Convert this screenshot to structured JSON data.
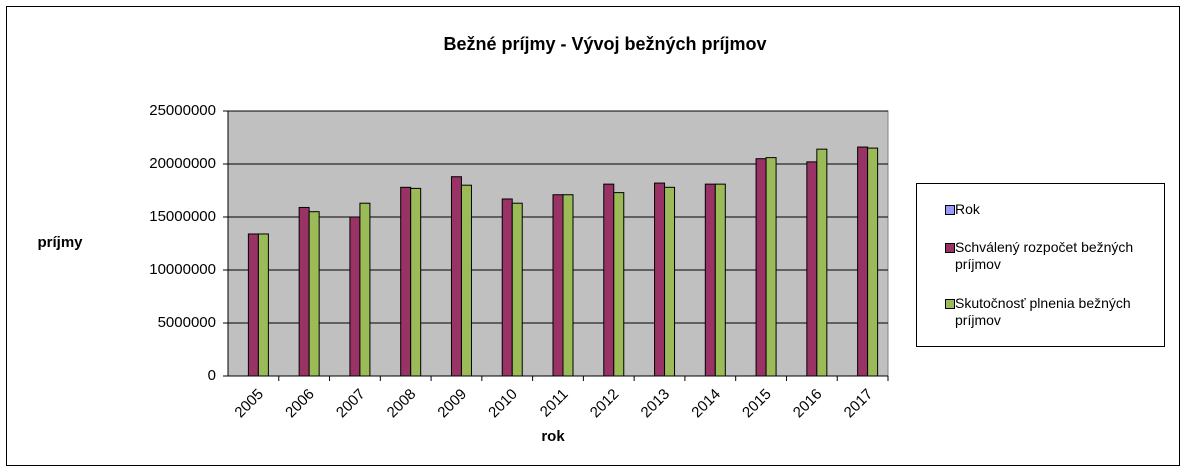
{
  "chart_data": {
    "type": "bar",
    "title": "Bežné príjmy - Vývoj bežných príjmov",
    "x_label": "rok",
    "y_label": "príjmy",
    "categories": [
      "2005",
      "2006",
      "2007",
      "2008",
      "2009",
      "2010",
      "2011",
      "2012",
      "2013",
      "2014",
      "2015",
      "2016",
      "2017"
    ],
    "series": [
      {
        "name": "Rok",
        "color": "#9999ff",
        "values": [
          2005,
          2006,
          2007,
          2008,
          2009,
          2010,
          2011,
          2012,
          2013,
          2014,
          2015,
          2016,
          2017
        ]
      },
      {
        "name": "Schválený rozpočet bežných príjmov",
        "color": "#993366",
        "values": [
          13400000,
          15900000,
          15000000,
          17800000,
          18800000,
          16700000,
          17100000,
          18100000,
          18200000,
          18100000,
          20500000,
          20200000,
          21600000
        ]
      },
      {
        "name": "Skutočnosť plnenia bežných príjmov",
        "color": "#9bbb59",
        "values": [
          13400000,
          15500000,
          16300000,
          17700000,
          18000000,
          16300000,
          17100000,
          17300000,
          17800000,
          18100000,
          20600000,
          21400000,
          21500000
        ]
      }
    ],
    "ylim": [
      0,
      25000000
    ],
    "yticks": [
      0,
      5000000,
      10000000,
      15000000,
      20000000,
      25000000
    ],
    "grid": true,
    "legend": "right"
  }
}
